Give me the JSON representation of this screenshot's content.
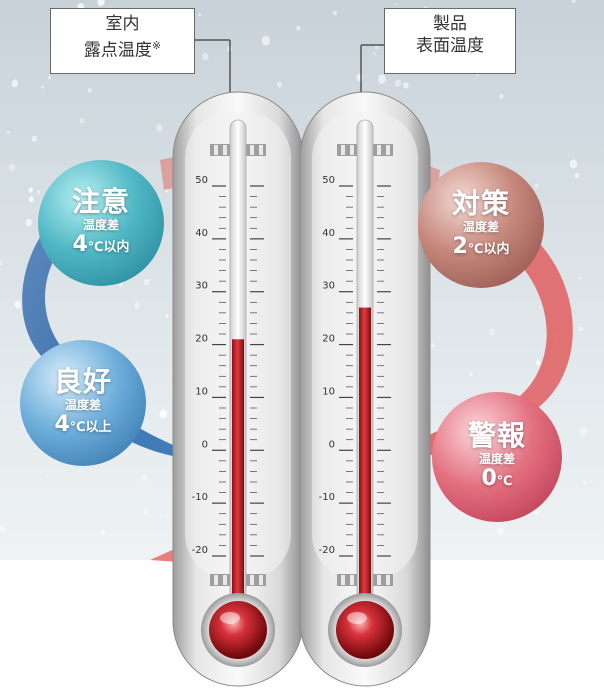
{
  "labels": {
    "left_line1": "室内",
    "left_line2": "露点温度",
    "left_mark": "※",
    "right_line1": "製品",
    "right_line2": "表面温度"
  },
  "scale": {
    "ticks": [
      50,
      40,
      30,
      20,
      10,
      0,
      -10,
      -20
    ],
    "min": -20,
    "max": 50
  },
  "thermometers": [
    {
      "name": "室内露点温度",
      "value": 21
    },
    {
      "name": "製品表面温度",
      "value": 27
    }
  ],
  "states": [
    {
      "title": "良好",
      "sub": "温度差",
      "num": "4",
      "unit": "℃以上",
      "color": "#5a9fd0"
    },
    {
      "title": "注意",
      "sub": "温度差",
      "num": "4",
      "unit": "℃以内",
      "color": "#3fa9b9"
    },
    {
      "title": "対策",
      "sub": "温度差",
      "num": "2",
      "unit": "℃以内",
      "color": "#b77a72"
    },
    {
      "title": "警報",
      "sub": "温度差",
      "num": "0",
      "unit": "℃",
      "color": "#d95a6e"
    }
  ]
}
